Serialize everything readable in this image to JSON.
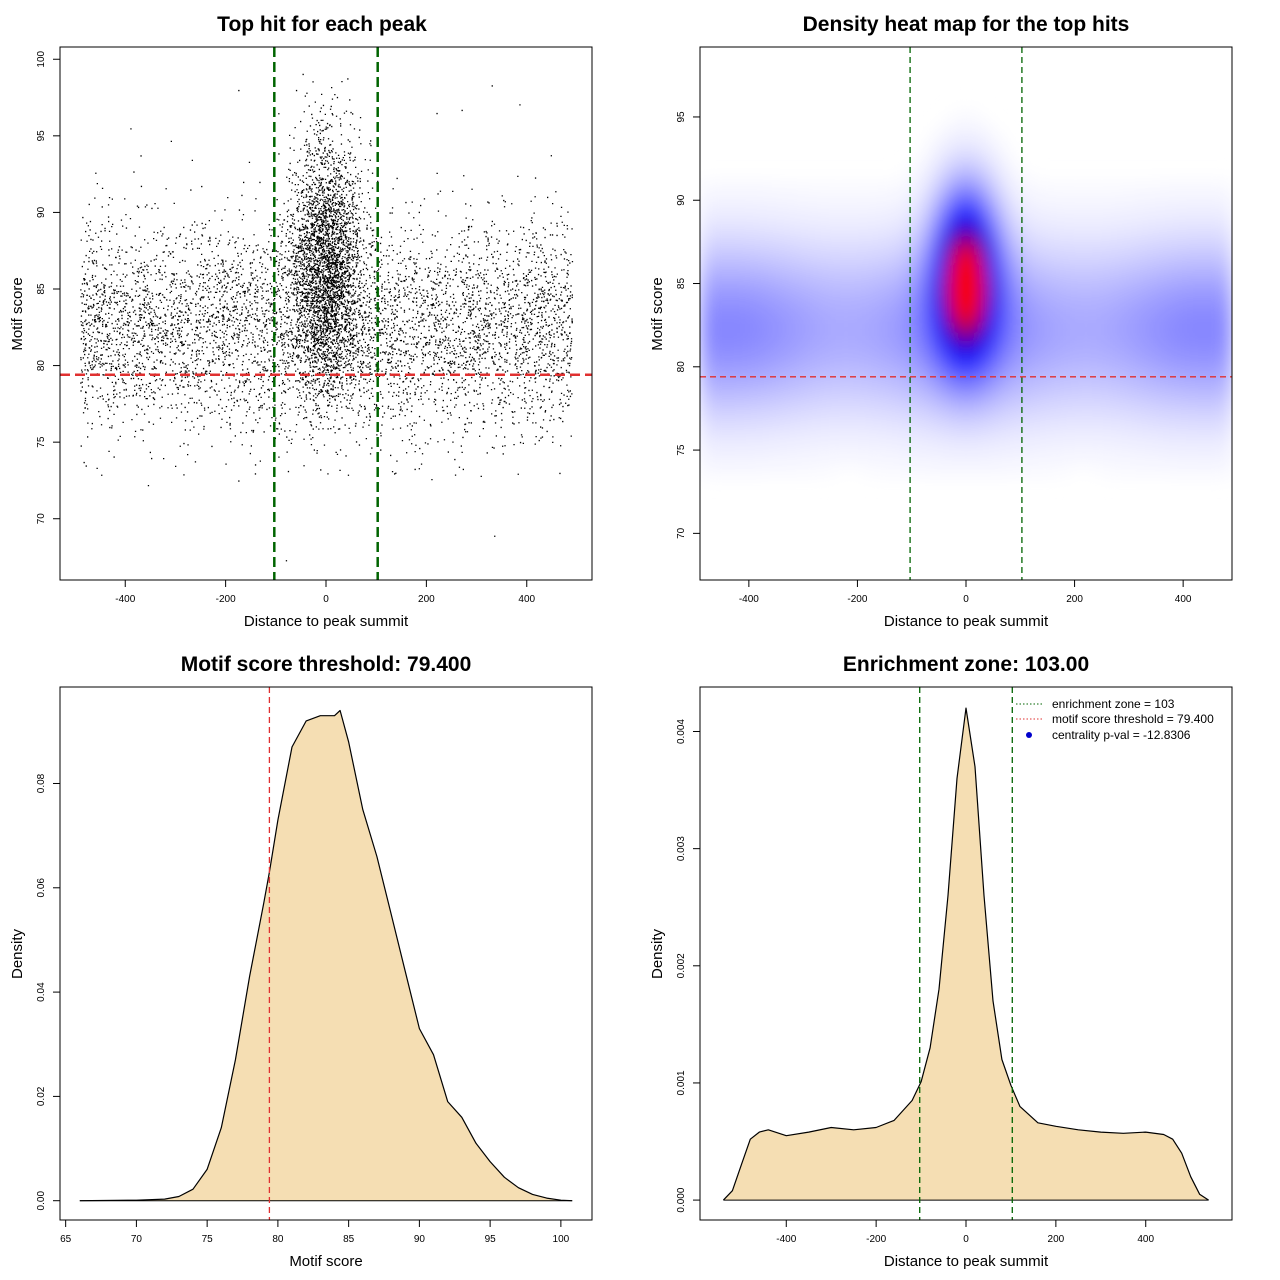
{
  "colors": {
    "green_line": "#006400",
    "red_line": "#e03030",
    "density_fill": "#f5deb3",
    "points": "#000000",
    "heat_low": "#ffffff",
    "heat_mid": "#0000ff",
    "heat_high": "#ff0000"
  },
  "chart_data": [
    {
      "type": "scatter",
      "title": "Top hit for each peak",
      "xlabel": "Distance to peak summit",
      "ylabel": "Motif score",
      "xlim": [
        -530,
        530
      ],
      "ylim": [
        66,
        100.8
      ],
      "xticks": [
        -400,
        -200,
        0,
        200,
        400
      ],
      "yticks": [
        70,
        75,
        80,
        85,
        90,
        95,
        100
      ],
      "xtick_labels": [
        "-400",
        "-200",
        "0",
        "200",
        "400"
      ],
      "ytick_labels": [
        "70",
        "75",
        "80",
        "85",
        "90",
        "95",
        "100"
      ],
      "vlines": [
        -103,
        103
      ],
      "hline": 79.4,
      "background": {
        "range": [
          -490,
          490
        ],
        "score_mean": 82.5,
        "score_sd": 3.4,
        "approx_n": 9000
      },
      "central_peak": {
        "center": 0,
        "spread_sd": 35,
        "score_mean": 86.5,
        "score_sd": 4.0,
        "approx_n": 7000
      },
      "outliers": [
        [
          -355,
          72.2
        ],
        [
          -60,
          98.0
        ],
        [
          -45,
          73.5
        ],
        [
          335,
          68.9
        ],
        [
          -80,
          67.3
        ],
        [
          330,
          98.3
        ],
        [
          -175,
          98.0
        ],
        [
          270,
          96.7
        ],
        [
          220,
          96.5
        ],
        [
          -390,
          95.5
        ]
      ]
    },
    {
      "type": "heatmap",
      "title": "Density heat map for the top hits",
      "xlabel": "Distance to peak summit",
      "ylabel": "Motif score",
      "xlim": [
        -490,
        490
      ],
      "ylim": [
        67.2,
        99.2
      ],
      "xticks": [
        -400,
        -200,
        0,
        200,
        400
      ],
      "yticks": [
        70,
        75,
        80,
        85,
        90,
        95
      ],
      "xtick_labels": [
        "-400",
        "-200",
        "0",
        "200",
        "400"
      ],
      "ytick_labels": [
        "70",
        "75",
        "80",
        "85",
        "90",
        "95"
      ],
      "vlines": [
        -103,
        103
      ],
      "hline": 79.4,
      "density_peak": {
        "x": 0,
        "y": 85
      }
    },
    {
      "type": "area",
      "title": "Motif score threshold: 79.400",
      "xlabel": "Motif score",
      "ylabel": "Density",
      "xlim": [
        64.6,
        102.2
      ],
      "ylim": [
        -0.0037,
        0.0985
      ],
      "xticks": [
        65,
        70,
        75,
        80,
        85,
        90,
        95,
        100
      ],
      "yticks": [
        0,
        0.02,
        0.04,
        0.06,
        0.08
      ],
      "xtick_labels": [
        "65",
        "70",
        "75",
        "80",
        "85",
        "90",
        "95",
        "100"
      ],
      "ytick_labels": [
        "0.00",
        "0.02",
        "0.04",
        "0.06",
        "0.08"
      ],
      "vline": 79.4,
      "x": [
        66,
        70,
        72,
        73,
        74,
        75,
        76,
        77,
        78,
        79,
        79.4,
        80,
        81,
        82,
        83,
        84,
        84.4,
        85,
        86,
        87,
        88,
        89,
        90,
        91,
        92,
        93,
        94,
        95,
        96,
        97,
        98,
        99,
        100,
        100.8
      ],
      "y": [
        0,
        0.0001,
        0.0003,
        0.0008,
        0.0022,
        0.006,
        0.014,
        0.027,
        0.043,
        0.057,
        0.063,
        0.073,
        0.087,
        0.092,
        0.093,
        0.093,
        0.094,
        0.088,
        0.075,
        0.066,
        0.055,
        0.044,
        0.033,
        0.028,
        0.019,
        0.016,
        0.011,
        0.0075,
        0.0045,
        0.0025,
        0.0012,
        0.0005,
        0.0001,
        0
      ]
    },
    {
      "type": "area",
      "title": "Enrichment zone: 103.00",
      "xlabel": "Distance to peak summit",
      "ylabel": "Density",
      "xlim": [
        -592,
        592
      ],
      "ylim": [
        -0.00017,
        0.00438
      ],
      "xticks": [
        -400,
        -200,
        0,
        200,
        400
      ],
      "yticks": [
        0,
        0.001,
        0.002,
        0.003,
        0.004
      ],
      "xtick_labels": [
        "-400",
        "-200",
        "0",
        "200",
        "400"
      ],
      "ytick_labels": [
        "0.000",
        "0.001",
        "0.002",
        "0.003",
        "0.004"
      ],
      "vlines": [
        -103,
        103
      ],
      "x": [
        -540,
        -520,
        -500,
        -480,
        -460,
        -440,
        -400,
        -350,
        -300,
        -250,
        -200,
        -160,
        -120,
        -100,
        -80,
        -60,
        -40,
        -20,
        0,
        20,
        40,
        60,
        80,
        100,
        120,
        160,
        200,
        250,
        300,
        350,
        400,
        440,
        460,
        480,
        500,
        520,
        540
      ],
      "y": [
        0,
        8e-05,
        0.0003,
        0.00052,
        0.00058,
        0.0006,
        0.00055,
        0.00058,
        0.00062,
        0.0006,
        0.00062,
        0.00068,
        0.00085,
        0.00101,
        0.0013,
        0.0018,
        0.0026,
        0.0036,
        0.0042,
        0.0037,
        0.0026,
        0.0017,
        0.0012,
        0.00098,
        0.0008,
        0.00066,
        0.00063,
        0.0006,
        0.00058,
        0.00057,
        0.00058,
        0.00056,
        0.00052,
        0.0004,
        0.0002,
        5e-05,
        0
      ],
      "legend": {
        "placement": "top-right",
        "items": [
          {
            "label": "enrichment zone = 103",
            "kind": "dotted-line",
            "color": "#006400"
          },
          {
            "label": "motif score threshold = 79.400",
            "kind": "dotted-line",
            "color": "#e03030"
          },
          {
            "label": "centrality p-val = -12.8306",
            "kind": "point",
            "color": "#0000cc"
          }
        ]
      }
    }
  ]
}
